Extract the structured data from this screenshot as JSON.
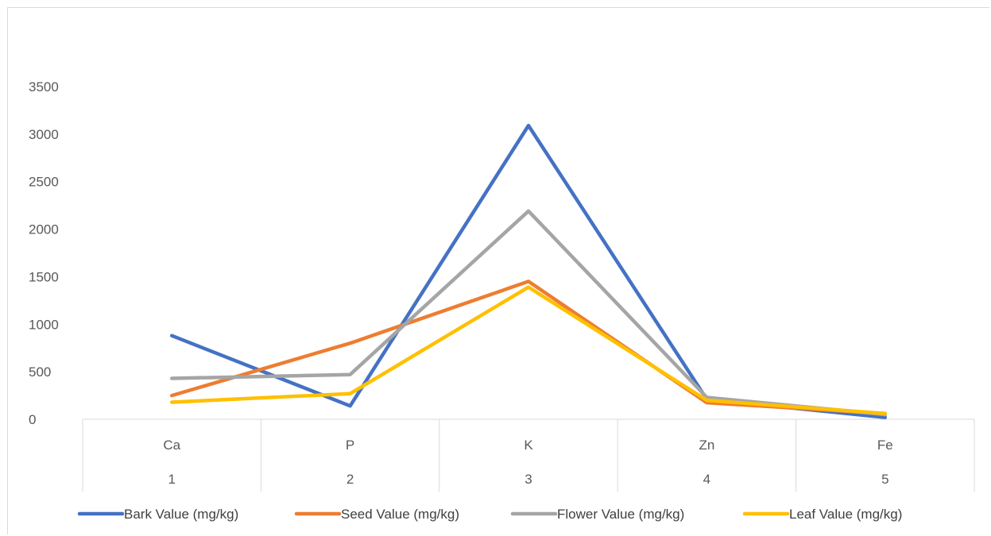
{
  "chart_data": {
    "type": "line",
    "categories": [
      {
        "name": "Ca",
        "index": "1"
      },
      {
        "name": "P",
        "index": "2"
      },
      {
        "name": "K",
        "index": "3"
      },
      {
        "name": "Zn",
        "index": "4"
      },
      {
        "name": "Fe",
        "index": "5"
      }
    ],
    "ylim": [
      0,
      3500
    ],
    "yticks": [
      "0",
      "500",
      "1000",
      "1500",
      "2000",
      "2500",
      "3000",
      "3500"
    ],
    "grid": false,
    "legend": "bottom",
    "series": [
      {
        "name": "Bark Value (mg/kg)",
        "color": "#4472c4",
        "values": [
          880,
          140,
          3090,
          210,
          20
        ]
      },
      {
        "name": "Seed Value (mg/kg)",
        "color": "#ed7d31",
        "values": [
          250,
          800,
          1450,
          175,
          60
        ]
      },
      {
        "name": "Flower Value (mg/kg)",
        "color": "#a5a5a5",
        "values": [
          430,
          470,
          2190,
          230,
          50
        ]
      },
      {
        "name": "Leaf Value (mg/kg)",
        "color": "#ffc000",
        "values": [
          180,
          270,
          1390,
          200,
          60
        ]
      }
    ]
  }
}
